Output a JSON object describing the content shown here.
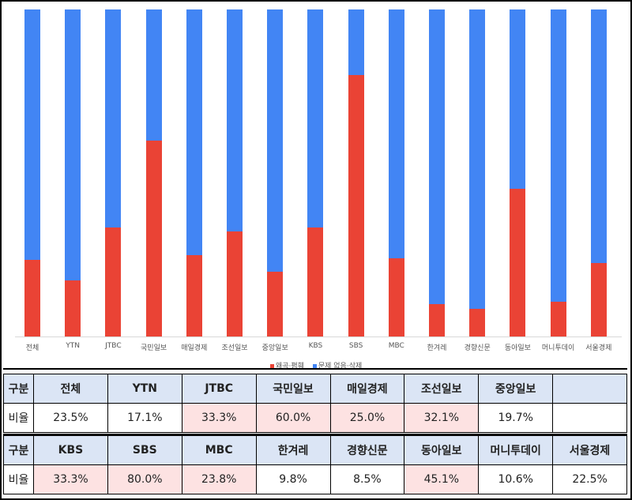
{
  "chart_data": {
    "type": "bar",
    "stacked": true,
    "normalized": true,
    "categories": [
      "전체",
      "YTN",
      "JTBC",
      "국민일보",
      "매일경제",
      "조선일보",
      "중앙일보",
      "KBS",
      "SBS",
      "MBC",
      "한겨레",
      "경향신문",
      "동아일보",
      "머니투데이",
      "서울경제"
    ],
    "series": [
      {
        "name": "왜곡·폄훼",
        "color": "#ea4335",
        "values": [
          23.5,
          17.1,
          33.3,
          60.0,
          25.0,
          32.1,
          19.7,
          33.3,
          80.0,
          23.8,
          9.8,
          8.5,
          45.1,
          10.6,
          22.5
        ]
      },
      {
        "name": "문제 없음·삭제",
        "color": "#4285f4",
        "values": [
          76.5,
          82.9,
          66.7,
          40.0,
          75.0,
          67.9,
          80.3,
          66.7,
          20.0,
          76.2,
          90.2,
          91.5,
          54.9,
          89.4,
          77.5
        ]
      }
    ],
    "ylim": [
      0,
      100
    ],
    "grid": false,
    "legend_position": "bottom"
  },
  "legend": [
    {
      "label": "왜곡·폄훼",
      "color": "#ea4335"
    },
    {
      "label": "문제 없음·삭제",
      "color": "#4285f4"
    }
  ],
  "table": {
    "row_header_label": "구분",
    "row_value_label": "비율",
    "rows": [
      {
        "headers": [
          "전체",
          "YTN",
          "JTBC",
          "국민일보",
          "매일경제",
          "조선일보",
          "중앙일보",
          ""
        ],
        "values": [
          "23.5%",
          "17.1%",
          "33.3%",
          "60.0%",
          "25.0%",
          "32.1%",
          "19.7%",
          ""
        ],
        "highlight": [
          false,
          false,
          true,
          true,
          true,
          true,
          false,
          false
        ]
      },
      {
        "headers": [
          "KBS",
          "SBS",
          "MBC",
          "한겨레",
          "경향신문",
          "동아일보",
          "머니투데이",
          "서울경제"
        ],
        "values": [
          "33.3%",
          "80.0%",
          "23.8%",
          "9.8%",
          "8.5%",
          "45.1%",
          "10.6%",
          "22.5%"
        ],
        "highlight": [
          true,
          true,
          true,
          false,
          false,
          true,
          false,
          false
        ]
      }
    ]
  }
}
